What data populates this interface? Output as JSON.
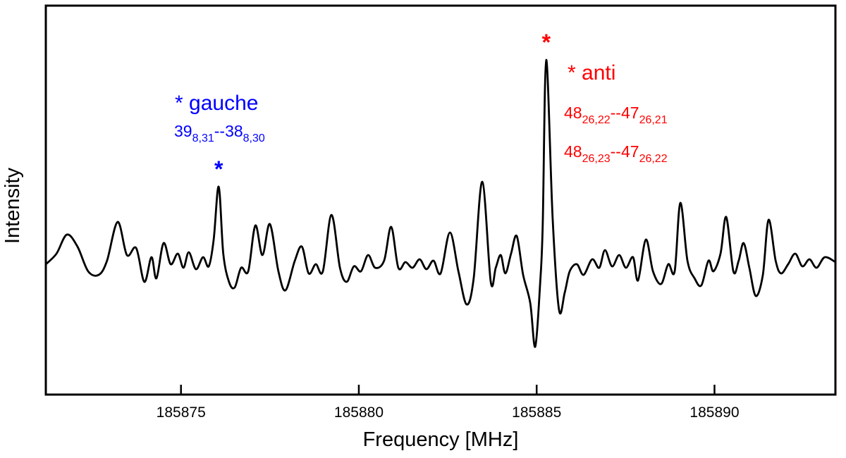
{
  "figure": {
    "xlabel": "Frequency [MHz]",
    "ylabel": "Intensity"
  },
  "chart_data": {
    "type": "line",
    "title": "",
    "xlabel": "Frequency [MHz]",
    "ylabel": "Intensity",
    "xlim": [
      185871.2,
      185893.4
    ],
    "ylim": [
      -1.9,
      3.62
    ],
    "x_ticks": [
      185875,
      185880,
      185885,
      185890
    ],
    "y_ticks": [],
    "grid": false,
    "line_color": "#000000",
    "peaks": [
      {
        "name": "gauche",
        "x": 185876.06,
        "intensity": 1.05,
        "color": "#0000ff"
      },
      {
        "name": "anti",
        "x": 185885.27,
        "intensity": 2.85,
        "color": "#ff0000"
      }
    ],
    "trace": [
      [
        185871.2,
        -0.05
      ],
      [
        185871.5,
        0.1
      ],
      [
        185871.79,
        0.37
      ],
      [
        185872.09,
        0.2
      ],
      [
        185872.39,
        -0.15
      ],
      [
        185872.69,
        -0.2
      ],
      [
        185872.92,
        0.0
      ],
      [
        185873.22,
        0.55
      ],
      [
        185873.48,
        0.08
      ],
      [
        185873.74,
        0.18
      ],
      [
        185873.97,
        -0.3
      ],
      [
        185874.17,
        0.05
      ],
      [
        185874.31,
        -0.25
      ],
      [
        185874.51,
        0.25
      ],
      [
        185874.71,
        -0.05
      ],
      [
        185874.91,
        0.1
      ],
      [
        185875.07,
        -0.1
      ],
      [
        185875.22,
        0.12
      ],
      [
        185875.42,
        -0.12
      ],
      [
        185875.62,
        0.05
      ],
      [
        185875.78,
        -0.08
      ],
      [
        185875.92,
        0.3
      ],
      [
        185876.06,
        1.05
      ],
      [
        185876.19,
        0.1
      ],
      [
        185876.35,
        -0.3
      ],
      [
        185876.51,
        -0.38
      ],
      [
        185876.69,
        -0.1
      ],
      [
        185876.89,
        -0.15
      ],
      [
        185877.09,
        0.5
      ],
      [
        185877.29,
        0.08
      ],
      [
        185877.5,
        0.52
      ],
      [
        185877.74,
        -0.15
      ],
      [
        185877.94,
        -0.42
      ],
      [
        185878.2,
        0.0
      ],
      [
        185878.4,
        0.2
      ],
      [
        185878.59,
        -0.18
      ],
      [
        185878.79,
        -0.05
      ],
      [
        185878.99,
        -0.15
      ],
      [
        185879.23,
        0.65
      ],
      [
        185879.47,
        -0.1
      ],
      [
        185879.66,
        -0.3
      ],
      [
        185879.86,
        -0.08
      ],
      [
        185880.06,
        -0.15
      ],
      [
        185880.26,
        0.08
      ],
      [
        185880.46,
        -0.1
      ],
      [
        185880.71,
        0.0
      ],
      [
        185880.91,
        0.48
      ],
      [
        185881.11,
        -0.1
      ],
      [
        185881.31,
        -0.02
      ],
      [
        185881.51,
        -0.1
      ],
      [
        185881.71,
        0.02
      ],
      [
        185881.9,
        -0.12
      ],
      [
        185882.1,
        0.0
      ],
      [
        185882.3,
        -0.18
      ],
      [
        185882.56,
        0.4
      ],
      [
        185882.8,
        -0.15
      ],
      [
        185883.03,
        -0.62
      ],
      [
        185883.23,
        -0.25
      ],
      [
        185883.47,
        1.12
      ],
      [
        185883.71,
        -0.3
      ],
      [
        185883.85,
        -0.1
      ],
      [
        185883.99,
        0.08
      ],
      [
        185884.12,
        -0.18
      ],
      [
        185884.28,
        0.1
      ],
      [
        185884.44,
        0.35
      ],
      [
        185884.62,
        -0.2
      ],
      [
        185884.82,
        -0.6
      ],
      [
        185884.96,
        -1.22
      ],
      [
        185885.1,
        -0.3
      ],
      [
        185885.17,
        0.5
      ],
      [
        185885.27,
        2.85
      ],
      [
        185885.45,
        0.6
      ],
      [
        185885.63,
        -0.7
      ],
      [
        185885.79,
        -0.45
      ],
      [
        185885.93,
        -0.15
      ],
      [
        185886.13,
        -0.05
      ],
      [
        185886.32,
        -0.2
      ],
      [
        185886.56,
        0.02
      ],
      [
        185886.76,
        -0.1
      ],
      [
        185886.92,
        0.15
      ],
      [
        185887.12,
        -0.08
      ],
      [
        185887.32,
        0.08
      ],
      [
        185887.51,
        -0.1
      ],
      [
        185887.71,
        0.05
      ],
      [
        185887.85,
        -0.28
      ],
      [
        185888.07,
        0.3
      ],
      [
        185888.27,
        -0.15
      ],
      [
        185888.5,
        -0.33
      ],
      [
        185888.7,
        -0.05
      ],
      [
        185888.88,
        -0.15
      ],
      [
        185889.04,
        0.82
      ],
      [
        185889.24,
        0.0
      ],
      [
        185889.44,
        -0.25
      ],
      [
        185889.63,
        -0.35
      ],
      [
        185889.83,
        0.0
      ],
      [
        185889.97,
        -0.15
      ],
      [
        185890.17,
        0.1
      ],
      [
        185890.33,
        0.62
      ],
      [
        185890.53,
        -0.15
      ],
      [
        185890.68,
        0.0
      ],
      [
        185890.82,
        0.25
      ],
      [
        185890.98,
        -0.1
      ],
      [
        185891.16,
        -0.5
      ],
      [
        185891.36,
        -0.2
      ],
      [
        185891.52,
        0.58
      ],
      [
        185891.72,
        0.0
      ],
      [
        185891.87,
        -0.18
      ],
      [
        185892.07,
        -0.05
      ],
      [
        185892.27,
        0.1
      ],
      [
        185892.47,
        -0.08
      ],
      [
        185892.67,
        0.02
      ],
      [
        185892.87,
        -0.1
      ],
      [
        185893.1,
        0.05
      ],
      [
        185893.4,
        -0.02
      ]
    ]
  },
  "annotations": {
    "gauche": {
      "color": "#0000ff",
      "marker": "*",
      "title": "* gauche",
      "transition": {
        "upper": "39",
        "upper_sub": "8,31",
        "sep": "--",
        "lower": "38",
        "lower_sub": "8,30"
      }
    },
    "anti": {
      "color": "#ff0000",
      "marker": "*",
      "title": "* anti",
      "transition1": {
        "upper": "48",
        "upper_sub": "26,22",
        "sep": "--",
        "lower": "47",
        "lower_sub": "26,21"
      },
      "transition2": {
        "upper": "48",
        "upper_sub": "26,23",
        "sep": "--",
        "lower": "47",
        "lower_sub": "26,22"
      }
    }
  }
}
